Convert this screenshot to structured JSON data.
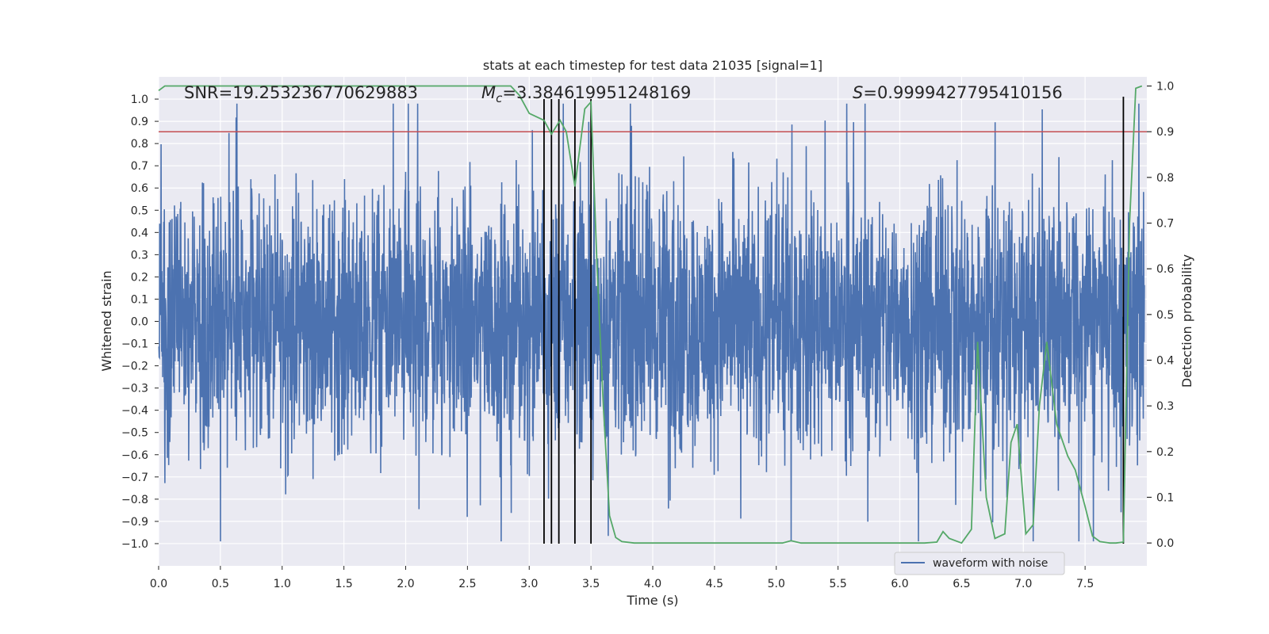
{
  "chart_data": {
    "type": "line",
    "title": "stats at each timestep for test data 21035 [signal=1]",
    "xlabel": "Time (s)",
    "ylabel_left": "Whitened strain",
    "ylabel_right": "Detection probability",
    "xlim": [
      0.0,
      8.0
    ],
    "ylim_left": [
      -1.1,
      1.1
    ],
    "ylim_right": [
      -0.05,
      1.02
    ],
    "x_ticks": [
      0.0,
      0.5,
      1.0,
      1.5,
      2.0,
      2.5,
      3.0,
      3.5,
      4.0,
      4.5,
      5.0,
      5.5,
      6.0,
      6.5,
      7.0,
      7.5
    ],
    "x_tick_labels": [
      "0.0",
      "0.5",
      "1.0",
      "1.5",
      "2.0",
      "2.5",
      "3.0",
      "3.5",
      "4.0",
      "4.5",
      "5.0",
      "5.5",
      "6.0",
      "6.5",
      "7.0",
      "7.5"
    ],
    "y_left_ticks": [
      1.0,
      0.9,
      0.8,
      0.7,
      0.6,
      0.5,
      0.4,
      0.3,
      0.2,
      0.1,
      0.0,
      -0.1,
      -0.2,
      -0.3,
      -0.4,
      -0.5,
      -0.6,
      -0.7,
      -0.8,
      -0.9,
      -1.0
    ],
    "y_left_tick_labels": [
      "1.0",
      "0.9",
      "0.8",
      "0.7",
      "0.6",
      "0.5",
      "0.4",
      "0.3",
      "0.2",
      "0.1",
      "0.0",
      "−0.1",
      "−0.2",
      "−0.3",
      "−0.4",
      "−0.5",
      "−0.6",
      "−0.7",
      "−0.8",
      "−0.9",
      "−1.0"
    ],
    "y_right_ticks": [
      1.0,
      0.9,
      0.8,
      0.7,
      0.6,
      0.5,
      0.4,
      0.3,
      0.2,
      0.1,
      0.0
    ],
    "y_right_tick_labels": [
      "1.0",
      "0.9",
      "0.8",
      "0.7",
      "0.6",
      "0.5",
      "0.4",
      "0.3",
      "0.2",
      "0.1",
      "0.0"
    ],
    "grid": true,
    "annotations": {
      "snr": "SNR=19.253236770629883",
      "mc_symbol": "M",
      "mc_subscript": "c",
      "mc_value": "=3.384619951248169",
      "s_symbol": "S",
      "s_value": "=0.9999427795410156"
    },
    "threshold_probability": 0.9,
    "vertical_markers": [
      3.12,
      3.18,
      3.24,
      3.37,
      3.5,
      7.81
    ],
    "series": [
      {
        "name": "waveform with noise",
        "color": "#4c72b0",
        "axis": "left",
        "description": "noisy whitened strain, roughly within [-1, 1]"
      },
      {
        "name": "detection probability",
        "color": "#55a868",
        "axis": "right",
        "x": [
          0.0,
          0.05,
          0.1,
          0.2,
          0.5,
          1.0,
          1.5,
          2.0,
          2.5,
          2.75,
          2.85,
          2.92,
          3.0,
          3.12,
          3.18,
          3.25,
          3.3,
          3.37,
          3.45,
          3.5,
          3.55,
          3.6,
          3.65,
          3.7,
          3.75,
          3.85,
          4.0,
          4.2,
          4.4,
          4.6,
          4.8,
          5.0,
          5.05,
          5.12,
          5.2,
          5.3,
          5.4,
          5.5,
          5.7,
          6.0,
          6.2,
          6.3,
          6.35,
          6.4,
          6.5,
          6.58,
          6.63,
          6.7,
          6.77,
          6.85,
          6.9,
          6.95,
          7.02,
          7.08,
          7.13,
          7.19,
          7.27,
          7.36,
          7.42,
          7.5,
          7.56,
          7.62,
          7.7,
          7.75,
          7.81,
          7.86,
          7.91,
          7.96
        ],
        "y": [
          0.99,
          1.0,
          1.0,
          1.0,
          1.0,
          1.0,
          1.0,
          1.0,
          1.0,
          1.0,
          1.0,
          0.98,
          0.94,
          0.925,
          0.895,
          0.925,
          0.9,
          0.78,
          0.95,
          0.965,
          0.6,
          0.3,
          0.06,
          0.012,
          0.003,
          0.0,
          0.0,
          0.0,
          0.0,
          0.0,
          0.0,
          0.0,
          0.0,
          0.005,
          0.0,
          0.0,
          0.0,
          0.0,
          0.0,
          0.0,
          0.0,
          0.002,
          0.025,
          0.01,
          0.0,
          0.03,
          0.44,
          0.1,
          0.01,
          0.02,
          0.22,
          0.26,
          0.02,
          0.04,
          0.3,
          0.44,
          0.26,
          0.19,
          0.16,
          0.08,
          0.015,
          0.003,
          0.0,
          0.0,
          0.002,
          0.7,
          0.995,
          1.0
        ]
      },
      {
        "name": "detection threshold",
        "color": "#c44e52",
        "axis": "right"
      }
    ],
    "legend": {
      "position": "lower-right",
      "entries": [
        "waveform with noise"
      ]
    }
  }
}
